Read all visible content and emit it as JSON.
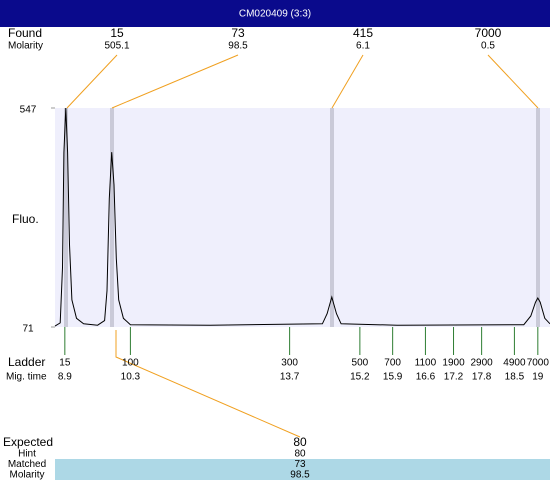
{
  "header": {
    "title": "CM020409 (3:3)"
  },
  "found": {
    "label": "Found",
    "sublabel": "Molarity",
    "peaks": [
      {
        "size": 15,
        "molarity": 505.1
      },
      {
        "size": 73,
        "molarity": 98.5
      },
      {
        "size": 415,
        "molarity": 6.1
      },
      {
        "size": 7000,
        "molarity": 0.5
      }
    ]
  },
  "chart_data": {
    "type": "line",
    "y_label": "Fluo.",
    "color": "#000000",
    "x": [
      8.69,
      8.8,
      8.85,
      8.88,
      8.92,
      8.96,
      9.0,
      9.05,
      9.15,
      9.3,
      9.6,
      9.75,
      9.8,
      9.85,
      9.9,
      9.95,
      10.0,
      10.05,
      10.15,
      10.3,
      12,
      14.4,
      14.5,
      14.6,
      14.7,
      14.8,
      16,
      18.7,
      18.85,
      18.95,
      19.0,
      19.05,
      19.15,
      19.26
    ],
    "values": [
      73,
      80,
      200,
      450,
      547,
      450,
      250,
      130,
      90,
      78,
      75,
      85,
      150,
      350,
      451,
      380,
      220,
      130,
      90,
      76,
      75,
      78,
      100,
      136,
      100,
      78,
      75,
      76,
      95,
      125,
      134,
      125,
      90,
      78
    ],
    "xlim": [
      8.69,
      19.26
    ],
    "ylim": [
      71,
      547
    ],
    "yticks": [
      71,
      547
    ]
  },
  "ladder": {
    "label": "Ladder",
    "sublabel": "Mig. time",
    "color": "#2e7d32",
    "sizes": [
      15,
      100,
      300,
      500,
      700,
      1100,
      1900,
      2900,
      4900,
      7000
    ],
    "times": [
      8.9,
      10.3,
      13.7,
      15.2,
      15.9,
      16.6,
      17.2,
      17.8,
      18.5,
      19
    ]
  },
  "expected": {
    "label": "Expected",
    "value": 80,
    "rows": [
      {
        "label": "Hint",
        "value": 80
      },
      {
        "label": "Matched",
        "value": 73
      },
      {
        "label": "Molarity",
        "value": 98.5
      }
    ]
  }
}
